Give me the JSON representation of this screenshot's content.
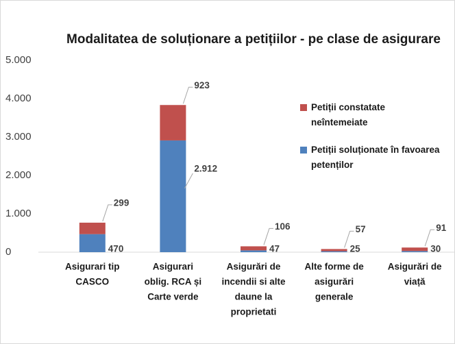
{
  "chart_data": {
    "type": "stacked_bar",
    "title": "Modalitatea de soluționare a petițiilor - pe clase de asigurare",
    "categories": [
      [
        "Asigurari tip",
        "CASCO"
      ],
      [
        "Asigurari",
        "oblig.  RCA și",
        "Carte verde"
      ],
      [
        "Asigurări de",
        "incendii si alte",
        "daune la",
        "proprietati"
      ],
      [
        "Alte forme de",
        "asigurări",
        "generale"
      ],
      [
        "Asigurări de",
        "viață"
      ]
    ],
    "series": [
      {
        "name": "Petiții soluționate în favoarea petenților",
        "color": "#4f81bd",
        "values": [
          470,
          2912,
          47,
          25,
          30
        ],
        "value_labels": [
          "470",
          "2.912",
          "47",
          "25",
          "30"
        ]
      },
      {
        "name": "Petiții constatate neîntemeiate",
        "color": "#c0504d",
        "values": [
          299,
          923,
          106,
          57,
          91
        ]
      }
    ],
    "ylim": [
      0,
      5000
    ],
    "yticks": [
      0,
      {
        "value": 1000,
        "label": "1.000"
      },
      {
        "value": 2000,
        "label": "2.000"
      },
      {
        "value": 3000,
        "label": "3.000"
      },
      {
        "value": 4000,
        "label": "4.000"
      },
      {
        "value": 5000,
        "label": "5.000"
      }
    ],
    "grid": false
  }
}
